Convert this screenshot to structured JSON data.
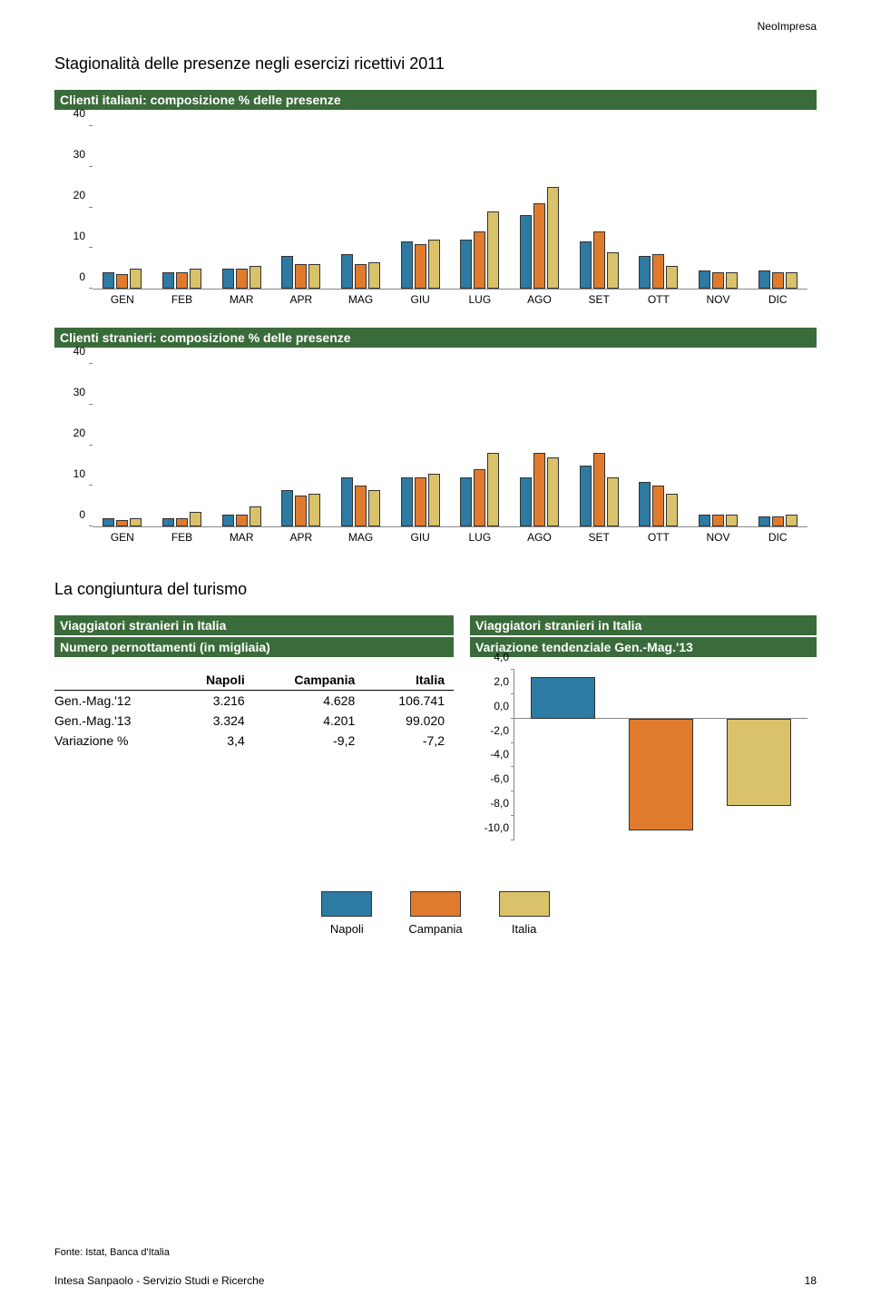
{
  "brand": "NeoImpresa",
  "page_title": "Stagionalità delle presenze negli esercizi ricettivi 2011",
  "subtitle": "La congiuntura del turismo",
  "source_line": "Fonte: Istat, Banca d'Italia",
  "footer_left": "Intesa Sanpaolo - Servizio Studi e Ricerche",
  "footer_page": "18",
  "colors": {
    "series": [
      "#2d7aa3",
      "#e07b2e",
      "#d9c26a"
    ],
    "section_bar_bg": "#3a6b3a",
    "section_bar_fg": "#ffffff",
    "axis": "#888888",
    "bar_border": "#333333"
  },
  "chart1": {
    "title": "Clienti italiani: composizione % delle presenze",
    "type": "bar",
    "y_ticks": [
      0,
      10,
      20,
      30,
      40
    ],
    "ylim": [
      0,
      40
    ],
    "months": [
      "GEN",
      "FEB",
      "MAR",
      "APR",
      "MAG",
      "GIU",
      "LUG",
      "AGO",
      "SET",
      "OTT",
      "NOV",
      "DIC"
    ],
    "series_names": [
      "Napoli",
      "Campania",
      "Italia"
    ],
    "values": [
      [
        4,
        3.5,
        5
      ],
      [
        4,
        4,
        5
      ],
      [
        5,
        5,
        5.5
      ],
      [
        8,
        6,
        6
      ],
      [
        8.5,
        6,
        6.5
      ],
      [
        11.5,
        11,
        12
      ],
      [
        12,
        14,
        19
      ],
      [
        18,
        21,
        25
      ],
      [
        11.5,
        14,
        9
      ],
      [
        8,
        8.5,
        5.5
      ],
      [
        4.5,
        4,
        4
      ],
      [
        4.5,
        4,
        4
      ]
    ]
  },
  "chart2": {
    "title": "Clienti stranieri: composizione % delle presenze",
    "type": "bar",
    "y_ticks": [
      0,
      10,
      20,
      30,
      40
    ],
    "ylim": [
      0,
      40
    ],
    "months": [
      "GEN",
      "FEB",
      "MAR",
      "APR",
      "MAG",
      "GIU",
      "LUG",
      "AGO",
      "SET",
      "OTT",
      "NOV",
      "DIC"
    ],
    "series_names": [
      "Napoli",
      "Campania",
      "Italia"
    ],
    "values": [
      [
        2,
        1.5,
        2
      ],
      [
        2,
        2,
        3.5
      ],
      [
        3,
        3,
        5
      ],
      [
        9,
        7.5,
        8
      ],
      [
        12,
        10,
        9
      ],
      [
        12,
        12,
        13
      ],
      [
        12,
        14,
        18
      ],
      [
        12,
        18,
        17
      ],
      [
        15,
        18,
        12
      ],
      [
        11,
        10,
        8
      ],
      [
        3,
        3,
        3
      ],
      [
        2.5,
        2.5,
        3
      ]
    ]
  },
  "table": {
    "title1": "Viaggiatori stranieri in Italia",
    "title2": "Numero pernottamenti (in migliaia)",
    "columns": [
      "",
      "Napoli",
      "Campania",
      "Italia"
    ],
    "rows": [
      [
        "Gen.-Mag.'12",
        "3.216",
        "4.628",
        "106.741"
      ],
      [
        "Gen.-Mag.'13",
        "3.324",
        "4.201",
        "99.020"
      ],
      [
        "Variazione %",
        "3,4",
        "-9,2",
        "-7,2"
      ]
    ]
  },
  "chart3": {
    "title1": "Viaggiatori stranieri in Italia",
    "title2": "Variazione tendenziale Gen.-Mag.'13",
    "type": "bar",
    "y_ticks": [
      4.0,
      2.0,
      0.0,
      -2.0,
      -4.0,
      -6.0,
      -8.0,
      -10.0
    ],
    "y_labels": [
      "4,0",
      "2,0",
      "0,0",
      "-2,0",
      "-4,0",
      "-6,0",
      "-8,0",
      "-10,0"
    ],
    "ylim": [
      -10,
      4
    ],
    "values": [
      3.4,
      -9.2,
      -7.2
    ],
    "series_names": [
      "Napoli",
      "Campania",
      "Italia"
    ]
  },
  "legend": {
    "items": [
      "Napoli",
      "Campania",
      "Italia"
    ]
  }
}
